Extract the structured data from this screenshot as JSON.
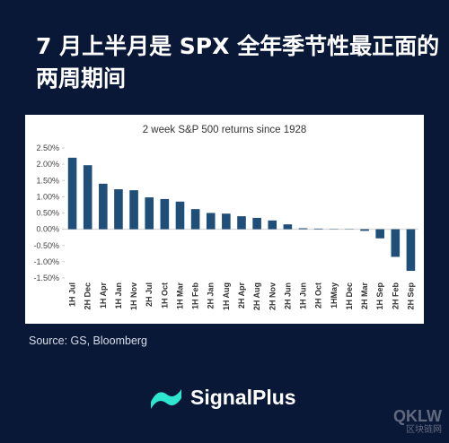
{
  "header": {
    "title_lines": [
      "7 月上半月是 SPX 全年季节性最正面的",
      "两周期间"
    ]
  },
  "chart_data": {
    "type": "bar",
    "title": "2 week S&P 500 returns since 1928",
    "categories": [
      "1H Jul",
      "2H Dec",
      "1H Apr",
      "1H Jan",
      "1H Nov",
      "2H Jul",
      "1H Oct",
      "1H Mar",
      "1H Feb",
      "2H Jan",
      "1H Aug",
      "2H Apr",
      "2H Aug",
      "2H Nov",
      "2H Jun",
      "1H Jun",
      "2H Oct",
      "1HMay",
      "1H Dec",
      "2H Mar",
      "1H Sep",
      "2H Feb",
      "2H Sep"
    ],
    "values": [
      2.2,
      1.97,
      1.4,
      1.23,
      1.2,
      0.98,
      0.93,
      0.85,
      0.62,
      0.5,
      0.48,
      0.4,
      0.35,
      0.27,
      0.15,
      0.03,
      0.02,
      0.01,
      -0.01,
      -0.05,
      -0.28,
      -0.85,
      -1.28
    ],
    "color": "#1f4e79",
    "ylim": [
      -1.5,
      2.5
    ],
    "yticks": [
      {
        "value": 2.5,
        "label": "2.50%"
      },
      {
        "value": 2.0,
        "label": "2.00%"
      },
      {
        "value": 1.5,
        "label": "1.50%"
      },
      {
        "value": 1.0,
        "label": "1.00%"
      },
      {
        "value": 0.5,
        "label": "0.50%"
      },
      {
        "value": 0,
        "label": "0.00%"
      },
      {
        "value": -0.5,
        "label": "-0.50%"
      },
      {
        "value": -1.0,
        "label": "-1.00%"
      },
      {
        "value": -1.5,
        "label": "-1.50%"
      }
    ],
    "grid": false
  },
  "source": "Source: GS, Bloomberg",
  "logo": "SignalPlus",
  "watermark": {
    "main": "QKLW",
    "sub": "区块链网"
  }
}
